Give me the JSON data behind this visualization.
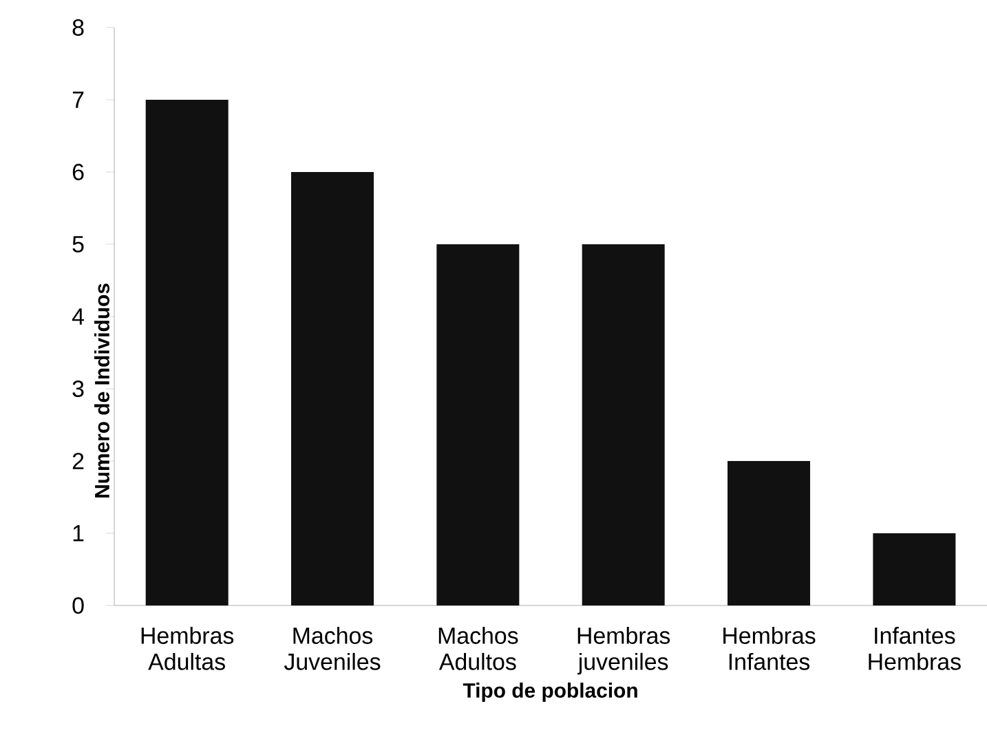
{
  "chart_data": {
    "type": "bar",
    "xlabel": "Tipo de poblacion",
    "ylabel": "Numero de Individuos",
    "categories": [
      "Hembras Adultas",
      "Machos Juveniles",
      "Machos Adultos",
      "Hembras juveniles",
      "Hembras Infantes",
      "Infantes Hembras"
    ],
    "values": [
      7,
      6,
      5,
      5,
      2,
      1
    ],
    "color": "#111111",
    "ylim": [
      0,
      8
    ],
    "yticks": [
      0,
      1,
      2,
      3,
      4,
      5,
      6,
      7,
      8
    ],
    "grid": false
  }
}
